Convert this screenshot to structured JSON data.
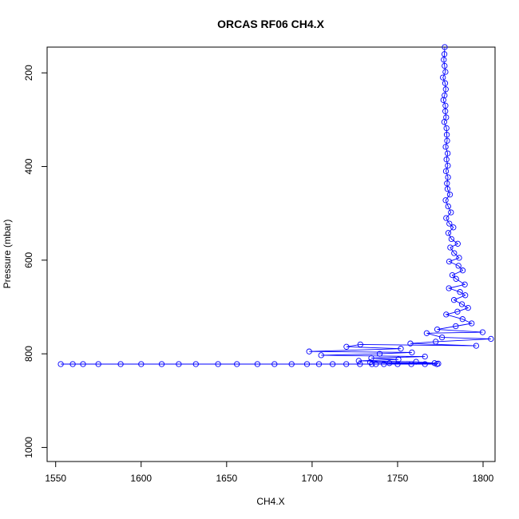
{
  "chart_data": {
    "type": "line",
    "title": "ORCAS RF06 CH4.X",
    "xlabel": "CH4.X",
    "ylabel": "Pressure (mbar)",
    "xlim": [
      1545,
      1807
    ],
    "ylim": [
      145,
      1030
    ],
    "y_reversed": true,
    "x_ticks": [
      1550,
      1600,
      1650,
      1700,
      1750,
      1800
    ],
    "y_ticks": [
      200,
      400,
      600,
      800,
      1000
    ],
    "grid": false,
    "legend": "none",
    "series": [
      {
        "color": "#0000ff",
        "marker": "open-circle",
        "points": [
          [
            1777.6,
            145
          ],
          [
            1777.4,
            160
          ],
          [
            1777.0,
            172
          ],
          [
            1777.5,
            185
          ],
          [
            1778.0,
            198
          ],
          [
            1776.5,
            210
          ],
          [
            1777.8,
            222
          ],
          [
            1778.2,
            235
          ],
          [
            1777.5,
            248
          ],
          [
            1776.8,
            258
          ],
          [
            1778.0,
            270
          ],
          [
            1777.9,
            282
          ],
          [
            1778.4,
            295
          ],
          [
            1777.3,
            305
          ],
          [
            1778.6,
            318
          ],
          [
            1778.8,
            332
          ],
          [
            1779.0,
            345
          ],
          [
            1778.1,
            358
          ],
          [
            1779.3,
            372
          ],
          [
            1778.6,
            385
          ],
          [
            1779.4,
            398
          ],
          [
            1778.3,
            410
          ],
          [
            1779.5,
            423
          ],
          [
            1778.9,
            436
          ],
          [
            1779.2,
            448
          ],
          [
            1780.6,
            460
          ],
          [
            1778.1,
            472
          ],
          [
            1779.6,
            485
          ],
          [
            1781.2,
            498
          ],
          [
            1778.4,
            510
          ],
          [
            1780.3,
            522
          ],
          [
            1782.6,
            530
          ],
          [
            1779.7,
            542
          ],
          [
            1781.5,
            555
          ],
          [
            1785.2,
            565
          ],
          [
            1780.8,
            573
          ],
          [
            1783.1,
            585
          ],
          [
            1786.0,
            595
          ],
          [
            1780.2,
            603
          ],
          [
            1785.6,
            612
          ],
          [
            1788.1,
            622
          ],
          [
            1782.0,
            632
          ],
          [
            1784.2,
            640
          ],
          [
            1789.3,
            652
          ],
          [
            1780.0,
            660
          ],
          [
            1786.5,
            668
          ],
          [
            1789.6,
            675
          ],
          [
            1783.0,
            685
          ],
          [
            1787.6,
            694
          ],
          [
            1791.2,
            702
          ],
          [
            1785.0,
            710
          ],
          [
            1778.4,
            716
          ],
          [
            1788.0,
            726
          ],
          [
            1793.3,
            735
          ],
          [
            1784.0,
            741
          ],
          [
            1773.2,
            748
          ],
          [
            1799.7,
            754
          ],
          [
            1767.0,
            756
          ],
          [
            1776.0,
            765
          ],
          [
            1804.6,
            768
          ],
          [
            1772.3,
            774
          ],
          [
            1757.5,
            778
          ],
          [
            1796.0,
            783
          ],
          [
            1728.2,
            780
          ],
          [
            1720.1,
            785
          ],
          [
            1751.9,
            789
          ],
          [
            1698.3,
            795
          ],
          [
            1758.4,
            797
          ],
          [
            1739.5,
            800
          ],
          [
            1705.3,
            803
          ],
          [
            1766.0,
            806
          ],
          [
            1734.6,
            809
          ],
          [
            1750.5,
            812
          ],
          [
            1727.3,
            815
          ],
          [
            1760.8,
            817
          ],
          [
            1771.6,
            820
          ],
          [
            1734.0,
            818
          ],
          [
            1745.2,
            820
          ],
          [
            1773.8,
            821
          ],
          [
            1737.3,
            822
          ],
          [
            1553.0,
            822
          ],
          [
            1560.0,
            822
          ],
          [
            1566.0,
            822
          ],
          [
            1575.0,
            822
          ],
          [
            1588.0,
            822
          ],
          [
            1600.0,
            822
          ],
          [
            1612.0,
            822
          ],
          [
            1622.0,
            822
          ],
          [
            1632.0,
            822
          ],
          [
            1645.0,
            822
          ],
          [
            1656.0,
            822
          ],
          [
            1668.0,
            822
          ],
          [
            1678.0,
            822
          ],
          [
            1688.0,
            822
          ],
          [
            1697.0,
            822
          ],
          [
            1704.0,
            822
          ],
          [
            1712.0,
            822
          ],
          [
            1720.0,
            822
          ],
          [
            1728.0,
            822
          ],
          [
            1735.0,
            822
          ],
          [
            1742.0,
            822
          ],
          [
            1750.0,
            822
          ],
          [
            1758.0,
            822
          ],
          [
            1766.0,
            822
          ],
          [
            1773.0,
            822
          ]
        ]
      }
    ]
  }
}
